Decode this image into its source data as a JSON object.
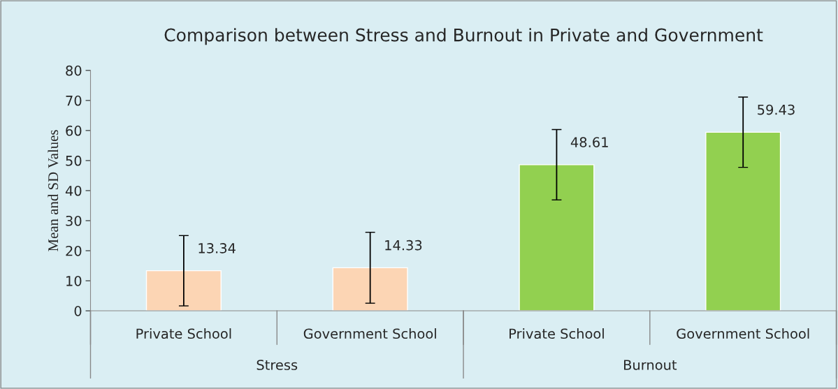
{
  "chart_data": {
    "type": "bar",
    "title": "Comparison between Stress and Burnout in Private and Government",
    "ylabel": "Mean and SD Values",
    "categories": [
      "Private School",
      "Government School",
      "Private School",
      "Government School"
    ],
    "values": [
      13.34,
      14.33,
      48.61,
      59.43
    ],
    "colors": [
      "#fcd5b4",
      "#fcd5b4",
      "#92d050",
      "#92d050"
    ],
    "errors": [
      11.7,
      11.8,
      11.7,
      11.7
    ],
    "data_labels": true,
    "annotations": [
      "Stress",
      "Burnout"
    ],
    "ylim": [
      0,
      80
    ],
    "yticks": [
      0,
      10,
      20,
      30,
      40,
      50,
      60,
      70,
      80
    ],
    "grid": false,
    "legend": false
  }
}
